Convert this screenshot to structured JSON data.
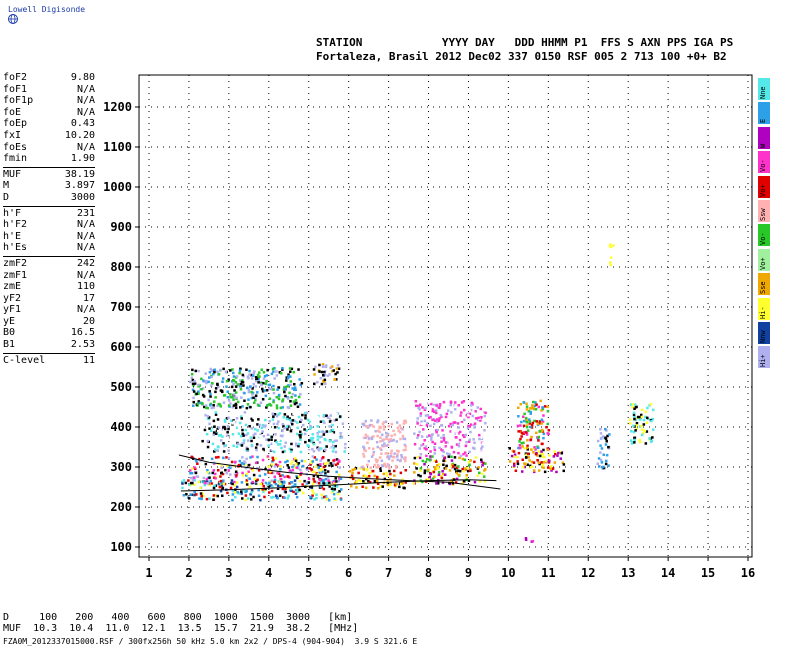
{
  "logo": {
    "text": "Lowell Digisonde",
    "icon": "globe-icon"
  },
  "header": {
    "line1": "STATION            YYYY DAY   DDD HHMM P1  FFS S AXN PPS IGA PS",
    "line2": "Fortaleza, Brasil 2012 Dec02 337 0150 RSF 005 2 713 100 +0+ B2"
  },
  "params": {
    "group1": [
      {
        "k": "foF2",
        "v": "9.80"
      },
      {
        "k": "foF1",
        "v": "N/A"
      },
      {
        "k": "foF1p",
        "v": "N/A"
      },
      {
        "k": "foE",
        "v": "N/A"
      },
      {
        "k": "foEp",
        "v": "0.43"
      },
      {
        "k": "fxI",
        "v": "10.20"
      },
      {
        "k": "foEs",
        "v": "N/A"
      },
      {
        "k": "fmin",
        "v": "1.90"
      }
    ],
    "group2": [
      {
        "k": "MUF",
        "v": "38.19"
      },
      {
        "k": "M",
        "v": "3.897"
      },
      {
        "k": "D",
        "v": "3000"
      }
    ],
    "group3": [
      {
        "k": "h'F",
        "v": "231"
      },
      {
        "k": "h'F2",
        "v": "N/A"
      },
      {
        "k": "h'E",
        "v": "N/A"
      },
      {
        "k": "h'Es",
        "v": "N/A"
      }
    ],
    "group4": [
      {
        "k": "zmF2",
        "v": "242"
      },
      {
        "k": "zmF1",
        "v": "N/A"
      },
      {
        "k": "zmE",
        "v": "110"
      },
      {
        "k": "yF2",
        "v": "17"
      },
      {
        "k": "yF1",
        "v": "N/A"
      },
      {
        "k": "yE",
        "v": "20"
      },
      {
        "k": "B0",
        "v": "16.5"
      },
      {
        "k": "B1",
        "v": "2.53"
      }
    ],
    "group5": [
      {
        "k": "C-level",
        "v": "11"
      }
    ]
  },
  "legend": [
    {
      "label": "Nne",
      "color": "#55e8e8"
    },
    {
      "label": "E",
      "color": "#2ea0e8"
    },
    {
      "label": "W",
      "color": "#b000c0"
    },
    {
      "label": "Vo-",
      "color": "#ff33cc"
    },
    {
      "label": "Vo+",
      "color": "#e00000"
    },
    {
      "label": "Ssw",
      "color": "#ffb0b0"
    },
    {
      "label": "Vo-",
      "color": "#28c828"
    },
    {
      "label": "Vo+",
      "color": "#a0f0a0"
    },
    {
      "label": "Sse",
      "color": "#f0a800"
    },
    {
      "label": "Hi-",
      "color": "#ffff30"
    },
    {
      "label": "Nnw",
      "color": "#1040a0"
    },
    {
      "label": "Hi+",
      "color": "#b0b0f0"
    }
  ],
  "chart_data": {
    "type": "scatter",
    "xlim": [
      0.75,
      16.1
    ],
    "ylim": [
      75,
      1280
    ],
    "xticks": [
      1,
      2,
      3,
      4,
      5,
      6,
      7,
      8,
      9,
      10,
      11,
      12,
      13,
      14,
      15,
      16
    ],
    "yticks": [
      100,
      200,
      300,
      400,
      500,
      600,
      700,
      800,
      900,
      1000,
      1100,
      1200
    ],
    "grid": true,
    "trace_line": [
      [
        1.8,
        240
      ],
      [
        3,
        243
      ],
      [
        4,
        247
      ],
      [
        5,
        252
      ],
      [
        6,
        257
      ],
      [
        7,
        262
      ],
      [
        8,
        266
      ],
      [
        9,
        268
      ],
      [
        9.7,
        266
      ]
    ],
    "trace_line2": [
      [
        1.75,
        330
      ],
      [
        2.5,
        312
      ],
      [
        3.5,
        298
      ],
      [
        4.5,
        286
      ],
      [
        5.5,
        277
      ],
      [
        6.5,
        271
      ],
      [
        7.5,
        266
      ],
      [
        8.5,
        262
      ],
      [
        9.8,
        245
      ]
    ],
    "clusters": [
      {
        "x": [
          1.8,
          5.8
        ],
        "y": [
          220,
          270
        ],
        "colors": [
          "#2ea0e8",
          "#55e8e8",
          "#e00000",
          "#000000",
          "#ffff30",
          "#1040a0"
        ]
      },
      {
        "x": [
          2.0,
          5.8
        ],
        "y": [
          260,
          330
        ],
        "colors": [
          "#ffff30",
          "#ff33cc",
          "#2ea0e8",
          "#b0b0f0",
          "#000000",
          "#e00000"
        ]
      },
      {
        "x": [
          2.3,
          5.9
        ],
        "y": [
          340,
          440
        ],
        "colors": [
          "#b0b0f0",
          "#ffffff",
          "#000000",
          "#55e8e8"
        ]
      },
      {
        "x": [
          2.0,
          4.8
        ],
        "y": [
          450,
          550
        ],
        "colors": [
          "#b0b0f0",
          "#000000",
          "#2ea0e8",
          "#28c828"
        ]
      },
      {
        "x": [
          5.1,
          5.8
        ],
        "y": [
          510,
          560
        ],
        "colors": [
          "#b0b0f0",
          "#000000",
          "#f0a800"
        ]
      },
      {
        "x": [
          6.0,
          7.4
        ],
        "y": [
          250,
          300
        ],
        "colors": [
          "#e00000",
          "#ffff30",
          "#f0a800",
          "#000000"
        ]
      },
      {
        "x": [
          6.3,
          7.4
        ],
        "y": [
          300,
          420
        ],
        "colors": [
          "#b0b0f0",
          "#ffb0b0"
        ]
      },
      {
        "x": [
          7.6,
          9.4
        ],
        "y": [
          260,
          330
        ],
        "colors": [
          "#ffff30",
          "#e00000",
          "#f0a800",
          "#b000c0",
          "#000000",
          "#28c828"
        ]
      },
      {
        "x": [
          7.6,
          9.4
        ],
        "y": [
          330,
          470
        ],
        "colors": [
          "#b0b0f0",
          "#ffffff",
          "#ff33cc"
        ]
      },
      {
        "x": [
          10.0,
          11.4
        ],
        "y": [
          290,
          350
        ],
        "colors": [
          "#ffff30",
          "#f0a800",
          "#000000",
          "#e00000",
          "#b000c0"
        ]
      },
      {
        "x": [
          10.2,
          11.0
        ],
        "y": [
          350,
          470
        ],
        "colors": [
          "#f0a800",
          "#ff33cc",
          "#e00000",
          "#28c828",
          "#2ea0e8"
        ]
      },
      {
        "x": [
          12.2,
          12.5
        ],
        "y": [
          300,
          400
        ],
        "colors": [
          "#000000",
          "#2ea0e8",
          "#b0b0f0"
        ]
      },
      {
        "x": [
          13.0,
          13.6
        ],
        "y": [
          360,
          460
        ],
        "colors": [
          "#55e8e8",
          "#000000",
          "#ffff30"
        ]
      },
      {
        "x": [
          12.5,
          12.6
        ],
        "y": [
          800,
          860
        ],
        "colors": [
          "#ffff30"
        ]
      },
      {
        "x": [
          10.4,
          10.6
        ],
        "y": [
          115,
          125
        ],
        "colors": [
          "#b000c0",
          "#ff33cc"
        ]
      }
    ]
  },
  "muf_table": {
    "row1": "D     100   200   400   600   800  1000  1500  3000   [km]",
    "row2": "MUF  10.3  10.4  11.0  12.1  13.5  15.7  21.9  38.2   [MHz]"
  },
  "footer": "FZA0M_2012337015000.RSF / 300fx256h 50 kHz 5.0 km 2x2 / DPS-4 (904-904)  3.9 S 321.6 E"
}
